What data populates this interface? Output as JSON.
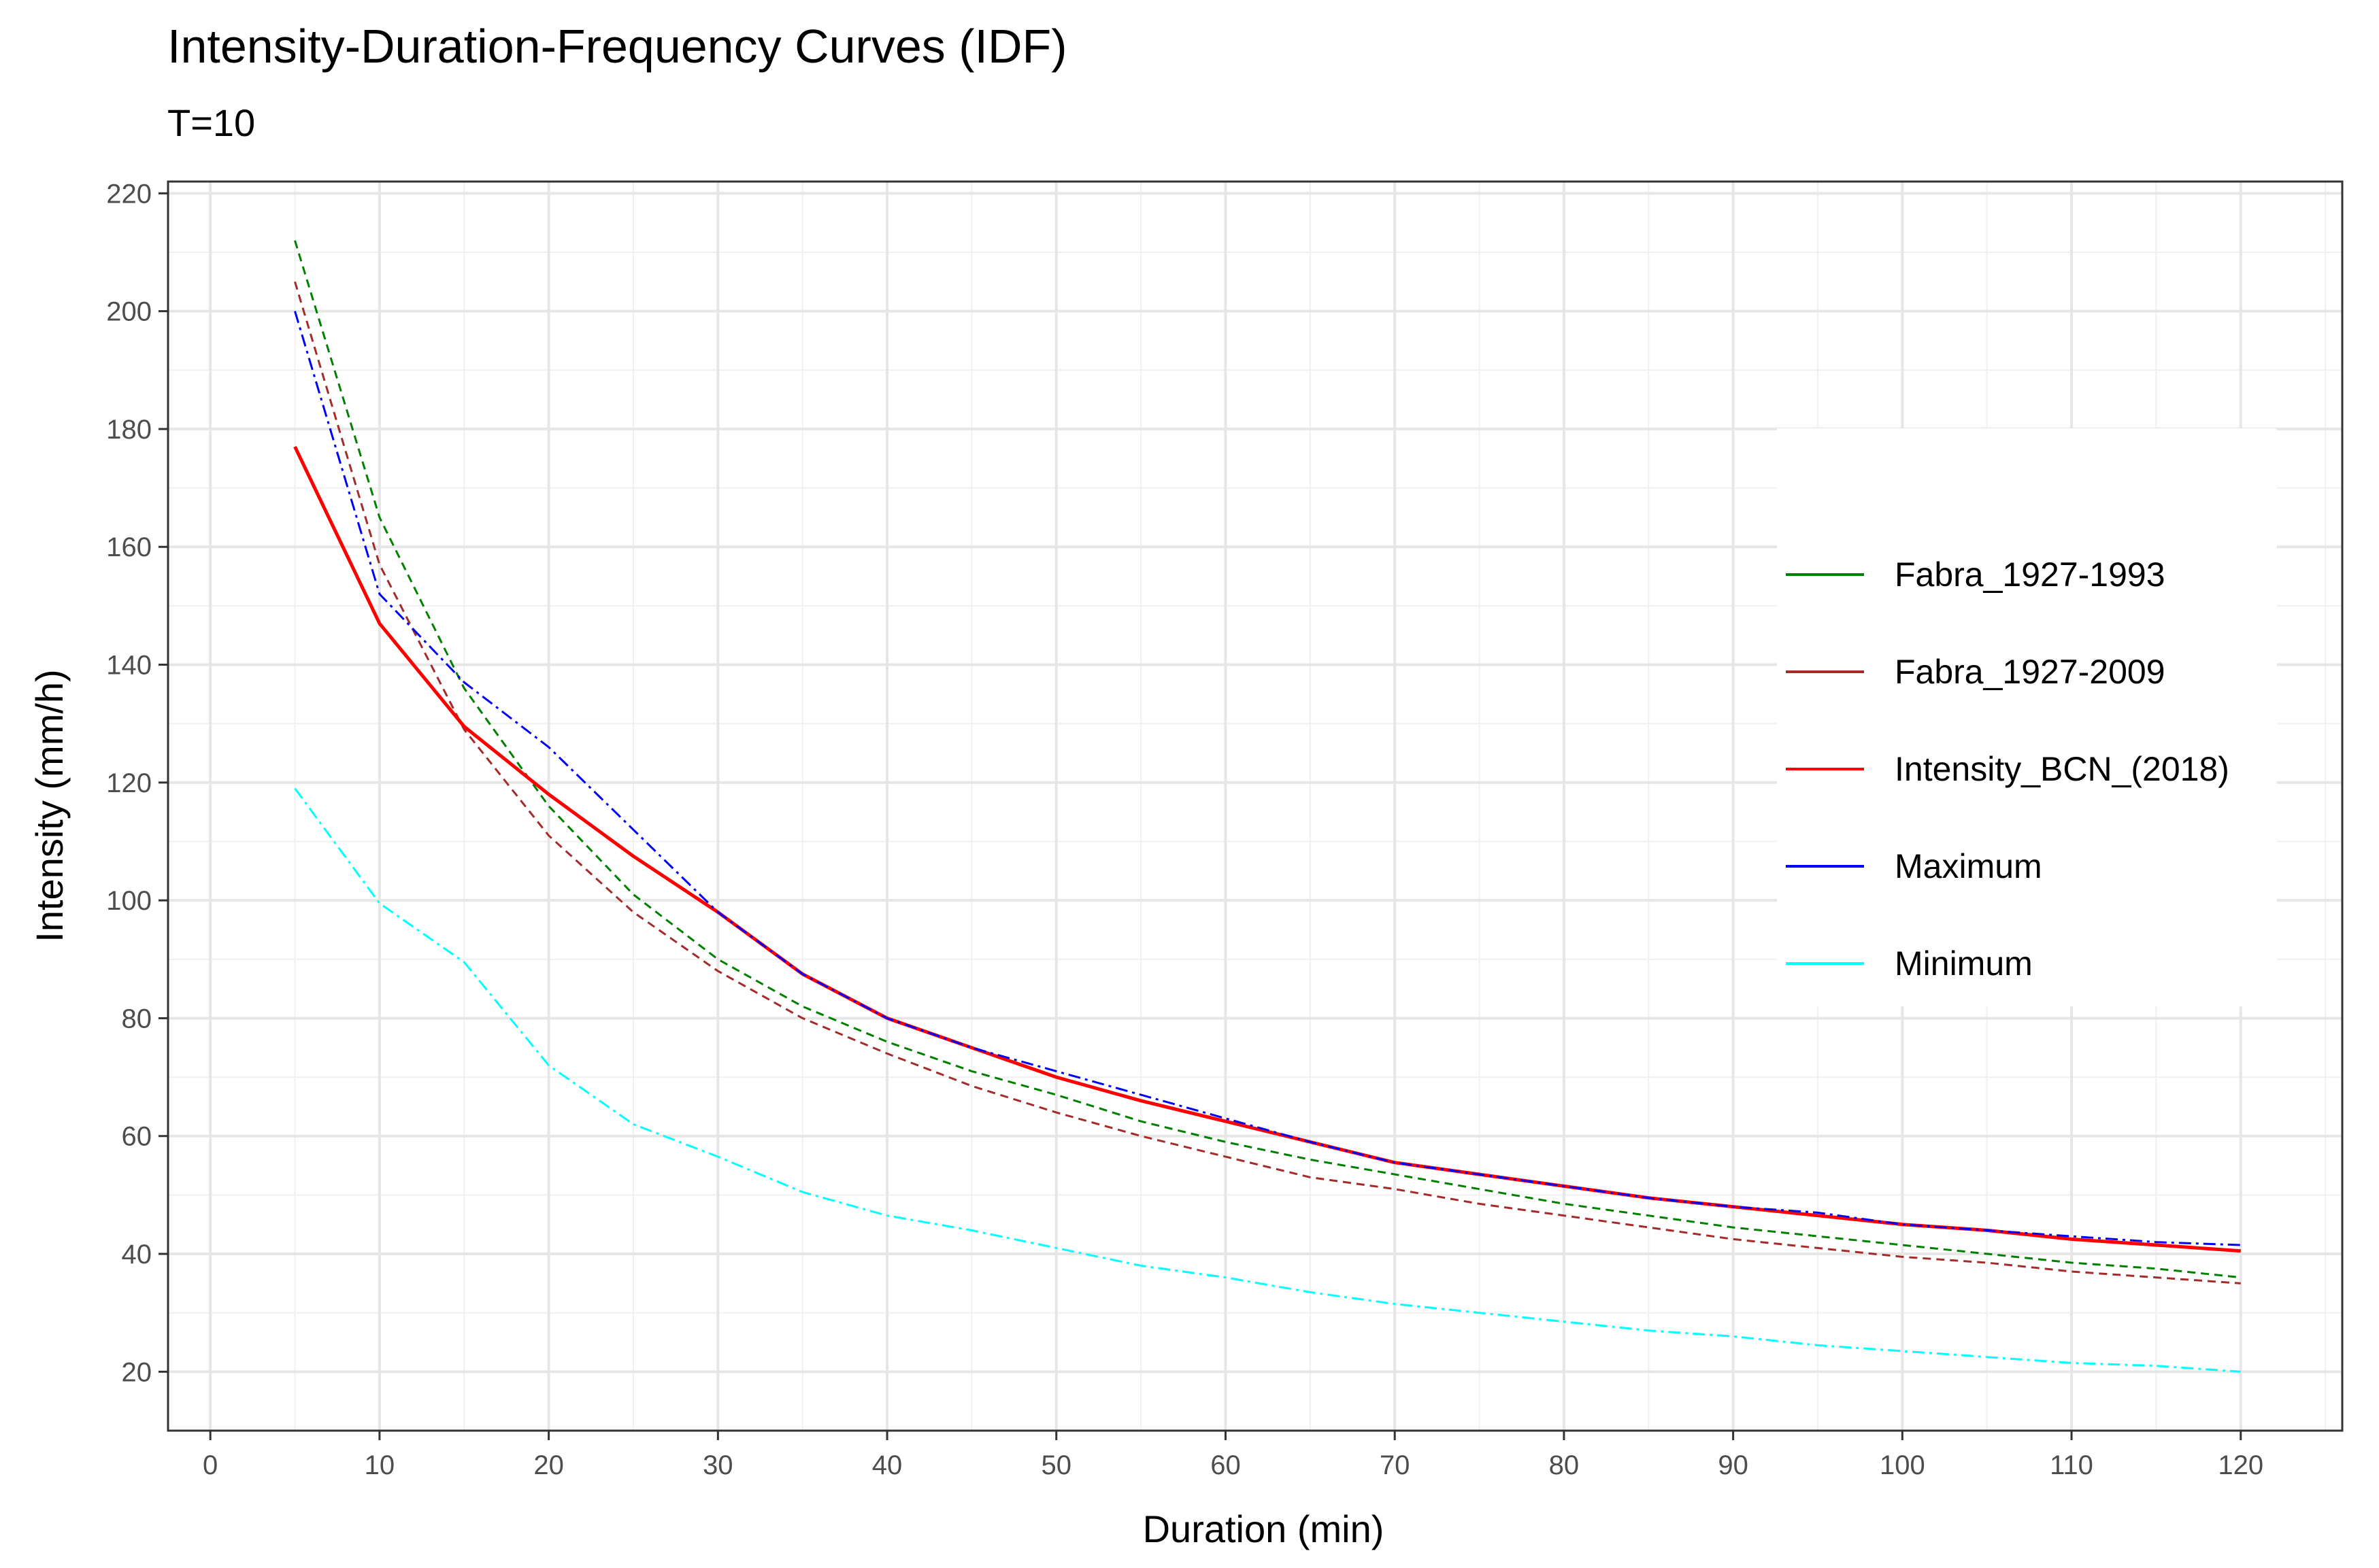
{
  "chart_data": {
    "type": "line",
    "title": "Intensity-Duration-Frequency Curves (IDF)",
    "subtitle": "T=10",
    "xlabel": "Duration (min)",
    "ylabel": "Intensity (mm/h)",
    "xlim": [
      -2.5,
      126
    ],
    "ylim": [
      10,
      222
    ],
    "xticks": [
      0,
      10,
      20,
      30,
      40,
      50,
      60,
      70,
      80,
      90,
      100,
      110,
      120
    ],
    "yticks": [
      20,
      40,
      60,
      80,
      100,
      120,
      140,
      160,
      180,
      200,
      220
    ],
    "grid": true,
    "legend_position": "right",
    "series": [
      {
        "name": "Fabra_1927-1993",
        "color": "#008000",
        "dash": "dashed",
        "x": [
          5,
          10,
          15,
          20,
          25,
          30,
          35,
          40,
          45,
          50,
          55,
          60,
          65,
          70,
          75,
          80,
          85,
          90,
          95,
          100,
          105,
          110,
          115,
          120
        ],
        "values": [
          212,
          165,
          136,
          116,
          101,
          90,
          82,
          76,
          71,
          67,
          62.5,
          59,
          56,
          53.5,
          51,
          48.5,
          46.5,
          44.5,
          43,
          41.5,
          40,
          38.5,
          37.5,
          36
        ]
      },
      {
        "name": "Fabra_1927-2009",
        "color": "#a52a2a",
        "dash": "dashed",
        "x": [
          5,
          10,
          15,
          20,
          25,
          30,
          35,
          40,
          45,
          50,
          55,
          60,
          65,
          70,
          75,
          80,
          85,
          90,
          95,
          100,
          105,
          110,
          115,
          120
        ],
        "values": [
          205,
          157,
          129,
          111,
          98,
          88,
          80,
          74,
          68.5,
          64,
          60,
          56.5,
          53,
          51,
          48.5,
          46.5,
          44.5,
          42.5,
          41,
          39.5,
          38.5,
          37,
          36,
          35
        ]
      },
      {
        "name": "Intensity_BCN_(2018)",
        "color": "#ff0000",
        "dash": "solid",
        "x": [
          5,
          10,
          15,
          20,
          25,
          30,
          35,
          40,
          45,
          50,
          55,
          60,
          65,
          70,
          75,
          80,
          85,
          90,
          95,
          100,
          105,
          110,
          115,
          120
        ],
        "values": [
          177,
          147,
          129.5,
          118,
          107.5,
          98,
          87.5,
          80,
          75,
          70,
          66,
          62.5,
          59,
          55.5,
          53.5,
          51.5,
          49.5,
          48,
          46.5,
          45,
          44,
          42.5,
          41.5,
          40.5
        ]
      },
      {
        "name": "Maximum",
        "color": "#0000ff",
        "dash": "dashdot",
        "x": [
          5,
          10,
          15,
          20,
          25,
          30,
          35,
          40,
          45,
          50,
          55,
          60,
          65,
          70,
          75,
          80,
          85,
          90,
          95,
          100,
          105,
          110,
          115,
          120
        ],
        "values": [
          200,
          152,
          137,
          126,
          112,
          98,
          87.5,
          80,
          75,
          71,
          67,
          63,
          59,
          55.5,
          53.5,
          51.5,
          49.5,
          48,
          47,
          45,
          44,
          43,
          42,
          41.5
        ]
      },
      {
        "name": "Minimum",
        "color": "#00ffff",
        "dash": "dashdot",
        "x": [
          5,
          10,
          15,
          20,
          25,
          30,
          35,
          40,
          45,
          50,
          55,
          60,
          65,
          70,
          75,
          80,
          85,
          90,
          95,
          100,
          105,
          110,
          115,
          120
        ],
        "values": [
          119,
          99.5,
          89.5,
          72,
          62,
          56.5,
          50.5,
          46.5,
          44,
          41,
          38,
          36,
          33.5,
          31.5,
          30,
          28.5,
          27,
          26,
          24.5,
          23.5,
          22.5,
          21.5,
          21,
          20
        ]
      }
    ]
  }
}
